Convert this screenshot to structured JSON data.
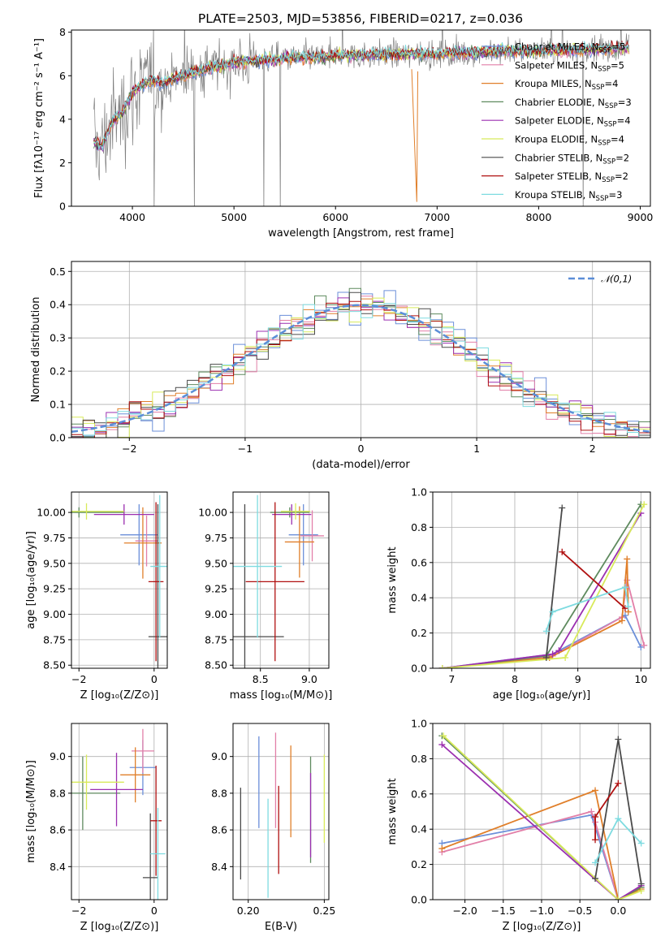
{
  "title": "PLATE=2503, MJD=53856, FIBERID=0217, z=0.036",
  "models": [
    {
      "name": "Chabrier MILES",
      "nssp": "5",
      "color": "#6b8fd9"
    },
    {
      "name": "Salpeter MILES",
      "nssp": "5",
      "color": "#e27fa8"
    },
    {
      "name": "Kroupa MILES",
      "nssp": "4",
      "color": "#e07f2a"
    },
    {
      "name": "Chabrier ELODIE",
      "nssp": "3",
      "color": "#5e8a5e"
    },
    {
      "name": "Salpeter ELODIE",
      "nssp": "4",
      "color": "#9b2fb0"
    },
    {
      "name": "Kroupa ELODIE",
      "nssp": "4",
      "color": "#d8ea5a"
    },
    {
      "name": "Chabrier STELIB",
      "nssp": "2",
      "color": "#4a4a4a"
    },
    {
      "name": "Salpeter STELIB",
      "nssp": "2",
      "color": "#b01010"
    },
    {
      "name": "Kroupa STELIB",
      "nssp": "3",
      "color": "#7edbe0"
    }
  ],
  "nssp_prefix": "N",
  "nssp_sub": "SSP",
  "chart_data": [
    {
      "id": "spectrum",
      "type": "line",
      "xlabel": "wavelength [Angstrom, rest frame]",
      "ylabel": "Flux [fλ10⁻¹⁷ erg cm⁻² s⁻¹ A⁻¹]",
      "xlim": [
        3400,
        9100
      ],
      "ylim": [
        0,
        8.1
      ],
      "xticks": [
        4000,
        5000,
        6000,
        7000,
        8000,
        9000
      ],
      "yticks": [
        0,
        2,
        4,
        6,
        8
      ],
      "data_color": "#808080",
      "model_profile_x": [
        3600,
        3700,
        3800,
        3900,
        4000,
        4100,
        4200,
        4300,
        4500,
        4700,
        5000,
        5500,
        6000,
        6500,
        7000,
        7500,
        8000,
        8500,
        8900
      ],
      "model_profile_y": [
        3.0,
        2.7,
        3.9,
        4.3,
        5.2,
        5.6,
        5.8,
        5.7,
        6.0,
        6.3,
        6.6,
        6.8,
        6.9,
        7.0,
        7.0,
        7.1,
        7.15,
        7.2,
        7.3
      ],
      "legend_position": "right"
    },
    {
      "id": "residuals",
      "type": "histogram",
      "xlabel": "(data-model)/error",
      "ylabel": "Normed distribution",
      "xlim": [
        -2.5,
        2.5
      ],
      "ylim": [
        0,
        0.53
      ],
      "xticks": [
        -2,
        -1,
        0,
        1,
        2
      ],
      "yticks": [
        0.0,
        0.1,
        0.2,
        0.3,
        0.4,
        0.5
      ],
      "bin_width": 0.1,
      "reference_curve": {
        "label": "𝒩(0,1)",
        "mu": 0,
        "sigma": 1,
        "color": "#5b8ed8"
      },
      "legend_position": "top-right"
    },
    {
      "id": "age_vs_Z",
      "type": "errorbar",
      "xlabel": "Z [log₁₀(Z/Z⊙)]",
      "ylabel": "age  [log₁₀(age/yr)]",
      "xlim": [
        -2.2,
        0.35
      ],
      "ylim": [
        8.47,
        10.2
      ],
      "xticks": [
        -2,
        0
      ],
      "yticks": [
        8.5,
        8.75,
        9.0,
        9.25,
        9.5,
        9.75,
        10.0
      ],
      "points": [
        {
          "m": 0,
          "x": -0.4,
          "xerr": 0.5,
          "y": 9.78,
          "yerr": 0.3
        },
        {
          "m": 1,
          "x": -0.2,
          "xerr": 0.3,
          "y": 9.72,
          "yerr": 0.25
        },
        {
          "m": 2,
          "x": -0.3,
          "xerr": 0.5,
          "y": 9.7,
          "yerr": 0.35
        },
        {
          "m": 3,
          "x": -2.0,
          "xerr": 1.2,
          "y": 10.0,
          "yerr": 0.05
        },
        {
          "m": 4,
          "x": -0.8,
          "xerr": 0.8,
          "y": 9.98,
          "yerr": 0.1
        },
        {
          "m": 5,
          "x": -1.8,
          "xerr": 1.0,
          "y": 10.01,
          "yerr": 0.08
        },
        {
          "m": 6,
          "x": 0.1,
          "xerr": 0.25,
          "y": 8.78,
          "yerr": 1.3
        },
        {
          "m": 7,
          "x": 0.05,
          "xerr": 0.2,
          "y": 9.32,
          "yerr": 0.78
        },
        {
          "m": 8,
          "x": 0.15,
          "xerr": 0.25,
          "y": 9.47,
          "yerr": 0.7
        }
      ]
    },
    {
      "id": "age_vs_mass",
      "type": "errorbar",
      "xlabel": "mass [log₁₀(M/M⊙)]",
      "ylabel": "",
      "xlim": [
        8.22,
        9.2
      ],
      "ylim": [
        8.47,
        10.2
      ],
      "xticks": [
        8.5,
        9.0
      ],
      "yticks": [
        8.5,
        8.75,
        9.0,
        9.25,
        9.5,
        9.75,
        10.0
      ],
      "points": [
        {
          "m": 0,
          "x": 8.94,
          "xerr": 0.15,
          "y": 9.78,
          "yerr": 0.3
        },
        {
          "m": 1,
          "x": 9.03,
          "xerr": 0.12,
          "y": 9.77,
          "yerr": 0.25
        },
        {
          "m": 2,
          "x": 8.9,
          "xerr": 0.15,
          "y": 9.71,
          "yerr": 0.35
        },
        {
          "m": 3,
          "x": 8.8,
          "xerr": 0.2,
          "y": 10.0,
          "yerr": 0.05
        },
        {
          "m": 4,
          "x": 8.82,
          "xerr": 0.2,
          "y": 9.98,
          "yerr": 0.1
        },
        {
          "m": 5,
          "x": 8.86,
          "xerr": 0.15,
          "y": 10.01,
          "yerr": 0.08
        },
        {
          "m": 6,
          "x": 8.34,
          "xerr": 0.4,
          "y": 8.78,
          "yerr": 1.3
        },
        {
          "m": 7,
          "x": 8.65,
          "xerr": 0.3,
          "y": 9.32,
          "yerr": 0.78
        },
        {
          "m": 8,
          "x": 8.47,
          "xerr": 0.25,
          "y": 9.47,
          "yerr": 0.7
        }
      ]
    },
    {
      "id": "weight_vs_age",
      "type": "line",
      "xlabel": "age  [log₁₀(age/yr)]",
      "ylabel": "mass weight",
      "xlim": [
        6.7,
        10.15
      ],
      "ylim": [
        0,
        1.0
      ],
      "xticks": [
        7,
        8,
        9,
        10
      ],
      "yticks": [
        0.0,
        0.2,
        0.4,
        0.6,
        0.8,
        1.0
      ],
      "series": [
        {
          "m": 0,
          "x": [
            6.85,
            8.6,
            9.75,
            10.0
          ],
          "y": [
            0.0,
            0.08,
            0.3,
            0.12
          ]
        },
        {
          "m": 1,
          "x": [
            6.85,
            8.6,
            9.7,
            9.78,
            10.05
          ],
          "y": [
            0.0,
            0.07,
            0.29,
            0.5,
            0.13
          ]
        },
        {
          "m": 2,
          "x": [
            6.85,
            8.55,
            9.7,
            9.78,
            9.8
          ],
          "y": [
            0.0,
            0.06,
            0.27,
            0.62,
            0.32
          ]
        },
        {
          "m": 3,
          "x": [
            6.85,
            8.5,
            10.0
          ],
          "y": [
            0.0,
            0.07,
            0.93
          ]
        },
        {
          "m": 4,
          "x": [
            6.85,
            8.6,
            8.7,
            10.0
          ],
          "y": [
            0.0,
            0.08,
            0.1,
            0.88
          ]
        },
        {
          "m": 5,
          "x": [
            6.85,
            8.8,
            10.05
          ],
          "y": [
            0.0,
            0.06,
            0.93
          ]
        },
        {
          "m": 6,
          "x": [
            8.5,
            8.75
          ],
          "y": [
            0.06,
            0.91
          ]
        },
        {
          "m": 7,
          "x": [
            8.75,
            9.75
          ],
          "y": [
            0.66,
            0.34
          ]
        },
        {
          "m": 8,
          "x": [
            8.5,
            8.6,
            9.75,
            9.8
          ],
          "y": [
            0.21,
            0.32,
            0.46,
            0.35
          ]
        }
      ]
    },
    {
      "id": "mass_vs_Z",
      "type": "errorbar",
      "xlabel": "Z [log₁₀(Z/Z⊙)]",
      "ylabel": "mass [log₁₀(M/M⊙)]",
      "xlim": [
        -2.2,
        0.35
      ],
      "ylim": [
        8.22,
        9.18
      ],
      "xticks": [
        -2,
        0
      ],
      "yticks": [
        8.4,
        8.6,
        8.8,
        9.0
      ],
      "points": [
        {
          "m": 0,
          "x": -0.3,
          "xerr": 0.35,
          "y": 8.94,
          "yerr": 0.15
        },
        {
          "m": 1,
          "x": -0.3,
          "xerr": 0.3,
          "y": 9.03,
          "yerr": 0.12
        },
        {
          "m": 2,
          "x": -0.5,
          "xerr": 0.4,
          "y": 8.9,
          "yerr": 0.15
        },
        {
          "m": 3,
          "x": -1.9,
          "xerr": 1.0,
          "y": 8.8,
          "yerr": 0.2
        },
        {
          "m": 4,
          "x": -1.0,
          "xerr": 0.7,
          "y": 8.82,
          "yerr": 0.2
        },
        {
          "m": 5,
          "x": -1.8,
          "xerr": 1.0,
          "y": 8.86,
          "yerr": 0.15
        },
        {
          "m": 6,
          "x": -0.1,
          "xerr": 0.2,
          "y": 8.34,
          "yerr": 0.35
        },
        {
          "m": 7,
          "x": 0.05,
          "xerr": 0.15,
          "y": 8.65,
          "yerr": 0.3
        },
        {
          "m": 8,
          "x": 0.1,
          "xerr": 0.2,
          "y": 8.47,
          "yerr": 0.25
        }
      ]
    },
    {
      "id": "mass_vs_ebv",
      "type": "errorbar",
      "xlabel": "E(B-V)",
      "ylabel": "",
      "xlim": [
        0.19,
        0.253
      ],
      "ylim": [
        8.22,
        9.18
      ],
      "xticks": [
        0.2,
        0.25
      ],
      "yticks": [
        8.4,
        8.6,
        8.8,
        9.0
      ],
      "points": [
        {
          "m": 0,
          "x": 0.207,
          "y": 8.86,
          "yerr": 0.25
        },
        {
          "m": 1,
          "x": 0.218,
          "y": 8.87,
          "yerr": 0.26
        },
        {
          "m": 2,
          "x": 0.228,
          "y": 8.81,
          "yerr": 0.25
        },
        {
          "m": 3,
          "x": 0.241,
          "y": 8.71,
          "yerr": 0.29
        },
        {
          "m": 4,
          "x": 0.241,
          "y": 8.68,
          "yerr": 0.23
        },
        {
          "m": 5,
          "x": 0.25,
          "y": 8.77,
          "yerr": 0.24
        },
        {
          "m": 6,
          "x": 0.195,
          "y": 8.58,
          "yerr": 0.25
        },
        {
          "m": 7,
          "x": 0.22,
          "y": 8.6,
          "yerr": 0.24
        },
        {
          "m": 8,
          "x": 0.213,
          "y": 8.5,
          "yerr": 0.27
        }
      ]
    },
    {
      "id": "weight_vs_Z",
      "type": "line",
      "xlabel": "Z [log₁₀(Z/Z⊙)]",
      "ylabel": "mass weight",
      "xlim": [
        -2.42,
        0.42
      ],
      "ylim": [
        0,
        1.0
      ],
      "xticks": [
        -2.0,
        -1.5,
        -1.0,
        -0.5,
        0.0
      ],
      "yticks": [
        0.0,
        0.2,
        0.4,
        0.6,
        0.8,
        1.0
      ],
      "series": [
        {
          "m": 0,
          "x": [
            -2.3,
            -0.35,
            0.0
          ],
          "y": [
            0.32,
            0.48,
            0.0
          ]
        },
        {
          "m": 1,
          "x": [
            -2.3,
            -0.35,
            -0.3,
            0.0
          ],
          "y": [
            0.27,
            0.5,
            0.44,
            0.0
          ]
        },
        {
          "m": 2,
          "x": [
            -2.3,
            -0.3,
            0.0,
            0.3
          ],
          "y": [
            0.29,
            0.62,
            0.0,
            0.06
          ]
        },
        {
          "m": 3,
          "x": [
            -2.3,
            0.0,
            0.3
          ],
          "y": [
            0.93,
            0.0,
            0.07
          ]
        },
        {
          "m": 4,
          "x": [
            -2.3,
            0.0,
            0.3
          ],
          "y": [
            0.88,
            0.0,
            0.08
          ]
        },
        {
          "m": 5,
          "x": [
            -2.28,
            0.0,
            0.3
          ],
          "y": [
            0.93,
            0.0,
            0.05
          ]
        },
        {
          "m": 6,
          "x": [
            -0.3,
            0.0,
            0.3
          ],
          "y": [
            0.12,
            0.91,
            0.09
          ]
        },
        {
          "m": 7,
          "x": [
            -0.3,
            -0.3,
            0.0
          ],
          "y": [
            0.34,
            0.47,
            0.66
          ]
        },
        {
          "m": 8,
          "x": [
            -0.3,
            0.0,
            0.3
          ],
          "y": [
            0.21,
            0.46,
            0.32
          ]
        }
      ]
    }
  ]
}
